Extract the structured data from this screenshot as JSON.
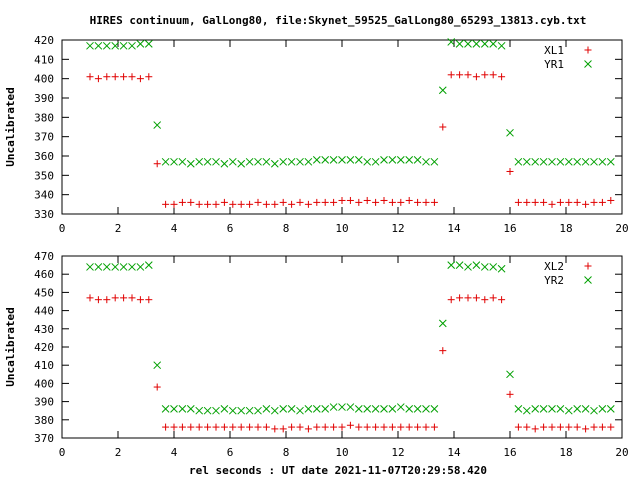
{
  "title": "HIRES continuum, GalLong80, file:Skynet_59525_GalLong80_65293_13813.cyb.txt",
  "xlabel": "rel seconds : UT date 2021-11-07T20:29:58.420",
  "colors": {
    "red": "#e00000",
    "green": "#00a000"
  },
  "chart_data": [
    {
      "type": "scatter",
      "ylabel": "Uncalibrated",
      "xlim": [
        0,
        20
      ],
      "ylim": [
        330,
        420
      ],
      "xticks": [
        0,
        2,
        4,
        6,
        8,
        10,
        12,
        14,
        16,
        18,
        20
      ],
      "yticks": [
        330,
        340,
        350,
        360,
        370,
        380,
        390,
        400,
        410,
        420
      ],
      "legend_position": "top-right",
      "series": [
        {
          "name": "XL1",
          "marker": "plus",
          "color": "#e00000",
          "x": [
            1.0,
            1.3,
            1.6,
            1.9,
            2.2,
            2.5,
            2.8,
            3.1,
            3.4,
            3.7,
            4.0,
            4.3,
            4.6,
            4.9,
            5.2,
            5.5,
            5.8,
            6.1,
            6.4,
            6.7,
            7.0,
            7.3,
            7.6,
            7.9,
            8.2,
            8.5,
            8.8,
            9.1,
            9.4,
            9.7,
            10.0,
            10.3,
            10.6,
            10.9,
            11.2,
            11.5,
            11.8,
            12.1,
            12.4,
            12.7,
            13.0,
            13.3,
            13.6,
            13.9,
            14.2,
            14.5,
            14.8,
            15.1,
            15.4,
            15.7,
            16.0,
            16.3,
            16.6,
            16.9,
            17.2,
            17.5,
            17.8,
            18.1,
            18.4,
            18.7,
            19.0,
            19.3,
            19.6
          ],
          "y": [
            401,
            400,
            401,
            401,
            401,
            401,
            400,
            401,
            356,
            335,
            335,
            336,
            336,
            335,
            335,
            335,
            336,
            335,
            335,
            335,
            336,
            335,
            335,
            336,
            335,
            336,
            335,
            336,
            336,
            336,
            337,
            337,
            336,
            337,
            336,
            337,
            336,
            336,
            337,
            336,
            336,
            336,
            375,
            402,
            402,
            402,
            401,
            402,
            402,
            401,
            352,
            336,
            336,
            336,
            336,
            335,
            336,
            336,
            336,
            335,
            336,
            336,
            337
          ]
        },
        {
          "name": "YR1",
          "marker": "cross",
          "color": "#00a000",
          "x": [
            1.0,
            1.3,
            1.6,
            1.9,
            2.2,
            2.5,
            2.8,
            3.1,
            3.4,
            3.7,
            4.0,
            4.3,
            4.6,
            4.9,
            5.2,
            5.5,
            5.8,
            6.1,
            6.4,
            6.7,
            7.0,
            7.3,
            7.6,
            7.9,
            8.2,
            8.5,
            8.8,
            9.1,
            9.4,
            9.7,
            10.0,
            10.3,
            10.6,
            10.9,
            11.2,
            11.5,
            11.8,
            12.1,
            12.4,
            12.7,
            13.0,
            13.3,
            13.6,
            13.9,
            14.2,
            14.5,
            14.8,
            15.1,
            15.4,
            15.7,
            16.0,
            16.3,
            16.6,
            16.9,
            17.2,
            17.5,
            17.8,
            18.1,
            18.4,
            18.7,
            19.0,
            19.3,
            19.6
          ],
          "y": [
            417,
            417,
            417,
            417,
            417,
            417,
            418,
            418,
            376,
            357,
            357,
            357,
            356,
            357,
            357,
            357,
            356,
            357,
            356,
            357,
            357,
            357,
            356,
            357,
            357,
            357,
            357,
            358,
            358,
            358,
            358,
            358,
            358,
            357,
            357,
            358,
            358,
            358,
            358,
            358,
            357,
            357,
            394,
            419,
            418,
            418,
            418,
            418,
            418,
            417,
            372,
            357,
            357,
            357,
            357,
            357,
            357,
            357,
            357,
            357,
            357,
            357,
            357
          ]
        }
      ]
    },
    {
      "type": "scatter",
      "ylabel": "Uncalibrated",
      "xlim": [
        0,
        20
      ],
      "ylim": [
        370,
        470
      ],
      "xticks": [
        0,
        2,
        4,
        6,
        8,
        10,
        12,
        14,
        16,
        18,
        20
      ],
      "yticks": [
        370,
        380,
        390,
        400,
        410,
        420,
        430,
        440,
        450,
        460,
        470
      ],
      "legend_position": "top-right",
      "series": [
        {
          "name": "XL2",
          "marker": "plus",
          "color": "#e00000",
          "x": [
            1.0,
            1.3,
            1.6,
            1.9,
            2.2,
            2.5,
            2.8,
            3.1,
            3.4,
            3.7,
            4.0,
            4.3,
            4.6,
            4.9,
            5.2,
            5.5,
            5.8,
            6.1,
            6.4,
            6.7,
            7.0,
            7.3,
            7.6,
            7.9,
            8.2,
            8.5,
            8.8,
            9.1,
            9.4,
            9.7,
            10.0,
            10.3,
            10.6,
            10.9,
            11.2,
            11.5,
            11.8,
            12.1,
            12.4,
            12.7,
            13.0,
            13.3,
            13.6,
            13.9,
            14.2,
            14.5,
            14.8,
            15.1,
            15.4,
            15.7,
            16.0,
            16.3,
            16.6,
            16.9,
            17.2,
            17.5,
            17.8,
            18.1,
            18.4,
            18.7,
            19.0,
            19.3,
            19.6
          ],
          "y": [
            447,
            446,
            446,
            447,
            447,
            447,
            446,
            446,
            398,
            376,
            376,
            376,
            376,
            376,
            376,
            376,
            376,
            376,
            376,
            376,
            376,
            376,
            375,
            375,
            376,
            376,
            375,
            376,
            376,
            376,
            376,
            377,
            376,
            376,
            376,
            376,
            376,
            376,
            376,
            376,
            376,
            376,
            418,
            446,
            447,
            447,
            447,
            446,
            447,
            446,
            394,
            376,
            376,
            375,
            376,
            376,
            376,
            376,
            376,
            375,
            376,
            376,
            376
          ]
        },
        {
          "name": "YR2",
          "marker": "cross",
          "color": "#00a000",
          "x": [
            1.0,
            1.3,
            1.6,
            1.9,
            2.2,
            2.5,
            2.8,
            3.1,
            3.4,
            3.7,
            4.0,
            4.3,
            4.6,
            4.9,
            5.2,
            5.5,
            5.8,
            6.1,
            6.4,
            6.7,
            7.0,
            7.3,
            7.6,
            7.9,
            8.2,
            8.5,
            8.8,
            9.1,
            9.4,
            9.7,
            10.0,
            10.3,
            10.6,
            10.9,
            11.2,
            11.5,
            11.8,
            12.1,
            12.4,
            12.7,
            13.0,
            13.3,
            13.6,
            13.9,
            14.2,
            14.5,
            14.8,
            15.1,
            15.4,
            15.7,
            16.0,
            16.3,
            16.6,
            16.9,
            17.2,
            17.5,
            17.8,
            18.1,
            18.4,
            18.7,
            19.0,
            19.3,
            19.6
          ],
          "y": [
            464,
            464,
            464,
            464,
            464,
            464,
            464,
            465,
            410,
            386,
            386,
            386,
            386,
            385,
            385,
            385,
            386,
            385,
            385,
            385,
            385,
            386,
            385,
            386,
            386,
            385,
            386,
            386,
            386,
            387,
            387,
            387,
            386,
            386,
            386,
            386,
            386,
            387,
            386,
            386,
            386,
            386,
            433,
            465,
            465,
            464,
            465,
            464,
            464,
            463,
            405,
            386,
            385,
            386,
            386,
            386,
            386,
            385,
            386,
            386,
            385,
            386,
            386
          ]
        }
      ]
    }
  ]
}
